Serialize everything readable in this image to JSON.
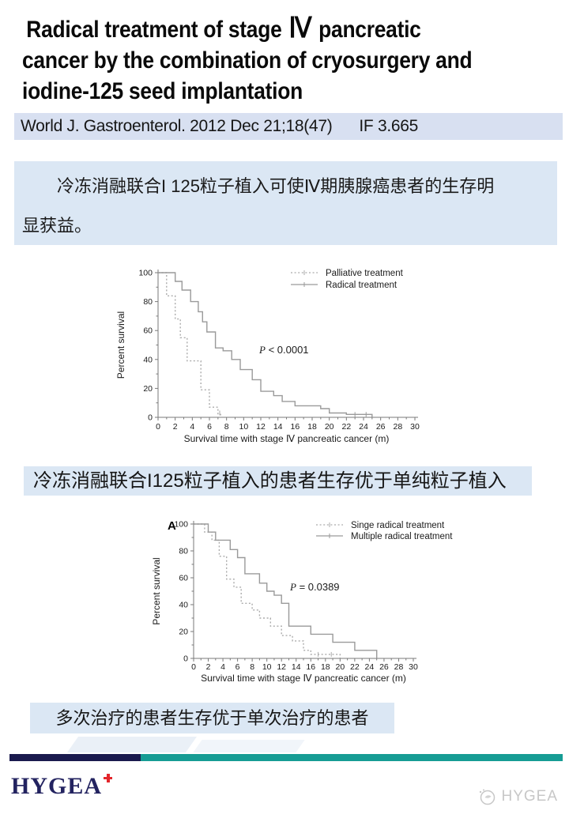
{
  "title": {
    "lines": [
      {
        "pre": "Radical treatment of stage ",
        "numeral": "Ⅳ",
        "post": " pancreatic"
      },
      {
        "pre": "cancer by the combination of cryosurgery and",
        "numeral": "",
        "post": ""
      },
      {
        "pre": "iodine-125 seed implantation",
        "numeral": "",
        "post": ""
      }
    ]
  },
  "citation": {
    "journal": "World J. Gastroenterol. 2012 Dec 21;18(47)",
    "impact": "IF 3.665"
  },
  "summary_box": {
    "lines": [
      "冷冻消融联合I 125粒子植入可使Ⅳ期胰腺癌患者的生存明",
      "显获益。"
    ]
  },
  "banner_mid": {
    "text": "冷冻消融联合I125粒子植入的患者生存优于单纯粒子植入"
  },
  "banner_bottom": {
    "text": "多次治疗的患者生存优于单次治疗的患者"
  },
  "footer": {
    "logo_text": "HYGEA",
    "watermark_text": "HYGEA",
    "cross_icon": "red-cross-icon",
    "watermark_icon": "hygea-dove-circle-icon"
  },
  "colors": {
    "citation_bar_bg": "#d8e0f1",
    "blue_box_bg": "#dbe7f4",
    "footer_navy": "#1a1a4e",
    "footer_teal": "#169c94",
    "logo_navy": "#232360",
    "logo_red": "#e3262b",
    "watermark_gray": "#c7c7c7",
    "curve_solid": "#9a9a9a",
    "curve_dotted": "#ababab"
  },
  "chart_data": [
    {
      "type": "line",
      "subtype": "kaplan-meier-step",
      "panel_label": "",
      "xlabel": "Survival time with stage Ⅳ pancreatic cancer (m)",
      "ylabel": "Percent survival",
      "xlim": [
        0,
        30
      ],
      "ylim": [
        0,
        100
      ],
      "xticks": [
        0,
        2,
        4,
        6,
        8,
        10,
        12,
        14,
        16,
        18,
        20,
        22,
        24,
        26,
        28,
        30
      ],
      "yticks": [
        0,
        20,
        40,
        60,
        80,
        100
      ],
      "grid": false,
      "legend_position": "top-right",
      "p_value": {
        "italic": "P",
        "rest": " < 0.0001"
      },
      "series": [
        {
          "name": "Palliative treatment",
          "line": "dotted",
          "points": [
            [
              0,
              100
            ],
            [
              1,
              100
            ],
            [
              1,
              84
            ],
            [
              2,
              84
            ],
            [
              2,
              68
            ],
            [
              2.6,
              68
            ],
            [
              2.6,
              55
            ],
            [
              3.4,
              55
            ],
            [
              3.4,
              39
            ],
            [
              5,
              39
            ],
            [
              5,
              19
            ],
            [
              6,
              19
            ],
            [
              6,
              7
            ],
            [
              7,
              7
            ],
            [
              7,
              2
            ],
            [
              7.3,
              2
            ],
            [
              7.3,
              0
            ]
          ],
          "censors": [
            [
              7.2,
              3
            ]
          ]
        },
        {
          "name": "Radical treatment",
          "line": "solid",
          "points": [
            [
              0,
              100
            ],
            [
              2,
              100
            ],
            [
              2,
              94
            ],
            [
              2.8,
              94
            ],
            [
              2.8,
              88
            ],
            [
              3.8,
              88
            ],
            [
              3.8,
              80
            ],
            [
              4.7,
              80
            ],
            [
              4.7,
              73
            ],
            [
              5.2,
              73
            ],
            [
              5.2,
              66
            ],
            [
              5.7,
              66
            ],
            [
              5.7,
              59
            ],
            [
              6.7,
              59
            ],
            [
              6.7,
              48
            ],
            [
              7.6,
              48
            ],
            [
              7.6,
              46
            ],
            [
              8.6,
              46
            ],
            [
              8.6,
              40
            ],
            [
              9.6,
              40
            ],
            [
              9.6,
              33
            ],
            [
              11,
              33
            ],
            [
              11,
              26
            ],
            [
              12,
              26
            ],
            [
              12,
              18
            ],
            [
              13.5,
              18
            ],
            [
              13.5,
              15
            ],
            [
              14.5,
              15
            ],
            [
              14.5,
              11
            ],
            [
              16,
              11
            ],
            [
              16,
              8
            ],
            [
              19,
              8
            ],
            [
              19,
              6
            ],
            [
              20,
              6
            ],
            [
              20,
              3
            ],
            [
              22,
              3
            ],
            [
              22,
              2
            ],
            [
              25,
              2
            ],
            [
              25,
              0
            ]
          ],
          "censors": [
            [
              23,
              2
            ],
            [
              24.3,
              2
            ]
          ]
        }
      ]
    },
    {
      "type": "line",
      "subtype": "kaplan-meier-step",
      "panel_label": "A",
      "xlabel": "Survival time with stage Ⅳ pancreatic cancer (m)",
      "ylabel": "Percent survival",
      "xlim": [
        0,
        30
      ],
      "ylim": [
        0,
        100
      ],
      "xticks": [
        0,
        2,
        4,
        6,
        8,
        10,
        12,
        14,
        16,
        18,
        20,
        22,
        24,
        26,
        28,
        30
      ],
      "yticks": [
        0,
        20,
        40,
        60,
        80,
        100
      ],
      "grid": false,
      "legend_position": "top-right",
      "p_value": {
        "italic": "P",
        "rest": " = 0.0389"
      },
      "series": [
        {
          "name": "Singe radical treatment",
          "line": "dotted",
          "points": [
            [
              0,
              100
            ],
            [
              1.5,
              100
            ],
            [
              1.5,
              94
            ],
            [
              2.5,
              94
            ],
            [
              2.5,
              88
            ],
            [
              3.5,
              88
            ],
            [
              3.5,
              76
            ],
            [
              4.5,
              76
            ],
            [
              4.5,
              59
            ],
            [
              5.5,
              59
            ],
            [
              5.5,
              53
            ],
            [
              6.5,
              53
            ],
            [
              6.5,
              41
            ],
            [
              8,
              41
            ],
            [
              8,
              36
            ],
            [
              9,
              36
            ],
            [
              9,
              30
            ],
            [
              10.5,
              30
            ],
            [
              10.5,
              24
            ],
            [
              12,
              24
            ],
            [
              12,
              17
            ],
            [
              13.5,
              17
            ],
            [
              13.5,
              13
            ],
            [
              15,
              13
            ],
            [
              15,
              6
            ],
            [
              16,
              6
            ],
            [
              16,
              3
            ],
            [
              20,
              3
            ],
            [
              20,
              0
            ]
          ],
          "censors": [
            [
              17,
              3
            ],
            [
              18.8,
              3
            ]
          ]
        },
        {
          "name": "Multiple radical treatment",
          "line": "solid",
          "points": [
            [
              0,
              100
            ],
            [
              2,
              100
            ],
            [
              2,
              94
            ],
            [
              3,
              94
            ],
            [
              3,
              88
            ],
            [
              5,
              88
            ],
            [
              5,
              81
            ],
            [
              6,
              81
            ],
            [
              6,
              75
            ],
            [
              7,
              75
            ],
            [
              7,
              63
            ],
            [
              9,
              63
            ],
            [
              9,
              56
            ],
            [
              10,
              56
            ],
            [
              10,
              50
            ],
            [
              11,
              50
            ],
            [
              11,
              47
            ],
            [
              12,
              47
            ],
            [
              12,
              41
            ],
            [
              13,
              41
            ],
            [
              13,
              24
            ],
            [
              16,
              24
            ],
            [
              16,
              18
            ],
            [
              19,
              18
            ],
            [
              19,
              12
            ],
            [
              22,
              12
            ],
            [
              22,
              6
            ],
            [
              25,
              6
            ],
            [
              25,
              0
            ]
          ],
          "censors": []
        }
      ]
    }
  ]
}
